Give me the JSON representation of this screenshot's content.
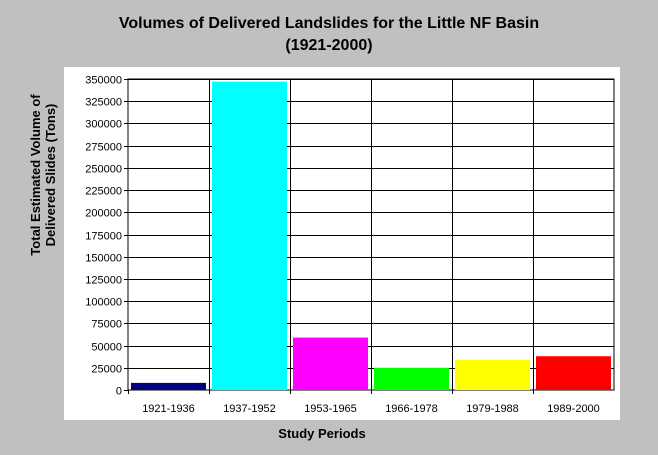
{
  "chart_data": {
    "type": "bar",
    "title": "Volumes of Delivered Landslides for the Little NF Basin",
    "subtitle": "(1921-2000)",
    "xlabel": "Study Periods",
    "ylabel": [
      "Total Estimated Volume of",
      "Delivered Slides (Tons)"
    ],
    "categories": [
      "1921-1936",
      "1937-1952",
      "1953-1965",
      "1966-1978",
      "1979-1988",
      "1989-2000"
    ],
    "values": [
      8000,
      347000,
      59000,
      25000,
      34000,
      38000
    ],
    "colors": [
      "#000080",
      "#00ffff",
      "#ff00ff",
      "#00ff00",
      "#ffff00",
      "#ff0000"
    ],
    "ylim": [
      0,
      350000
    ],
    "yticks": [
      0,
      25000,
      50000,
      75000,
      100000,
      125000,
      150000,
      175000,
      200000,
      225000,
      250000,
      275000,
      300000,
      325000,
      350000
    ],
    "grid": true
  }
}
